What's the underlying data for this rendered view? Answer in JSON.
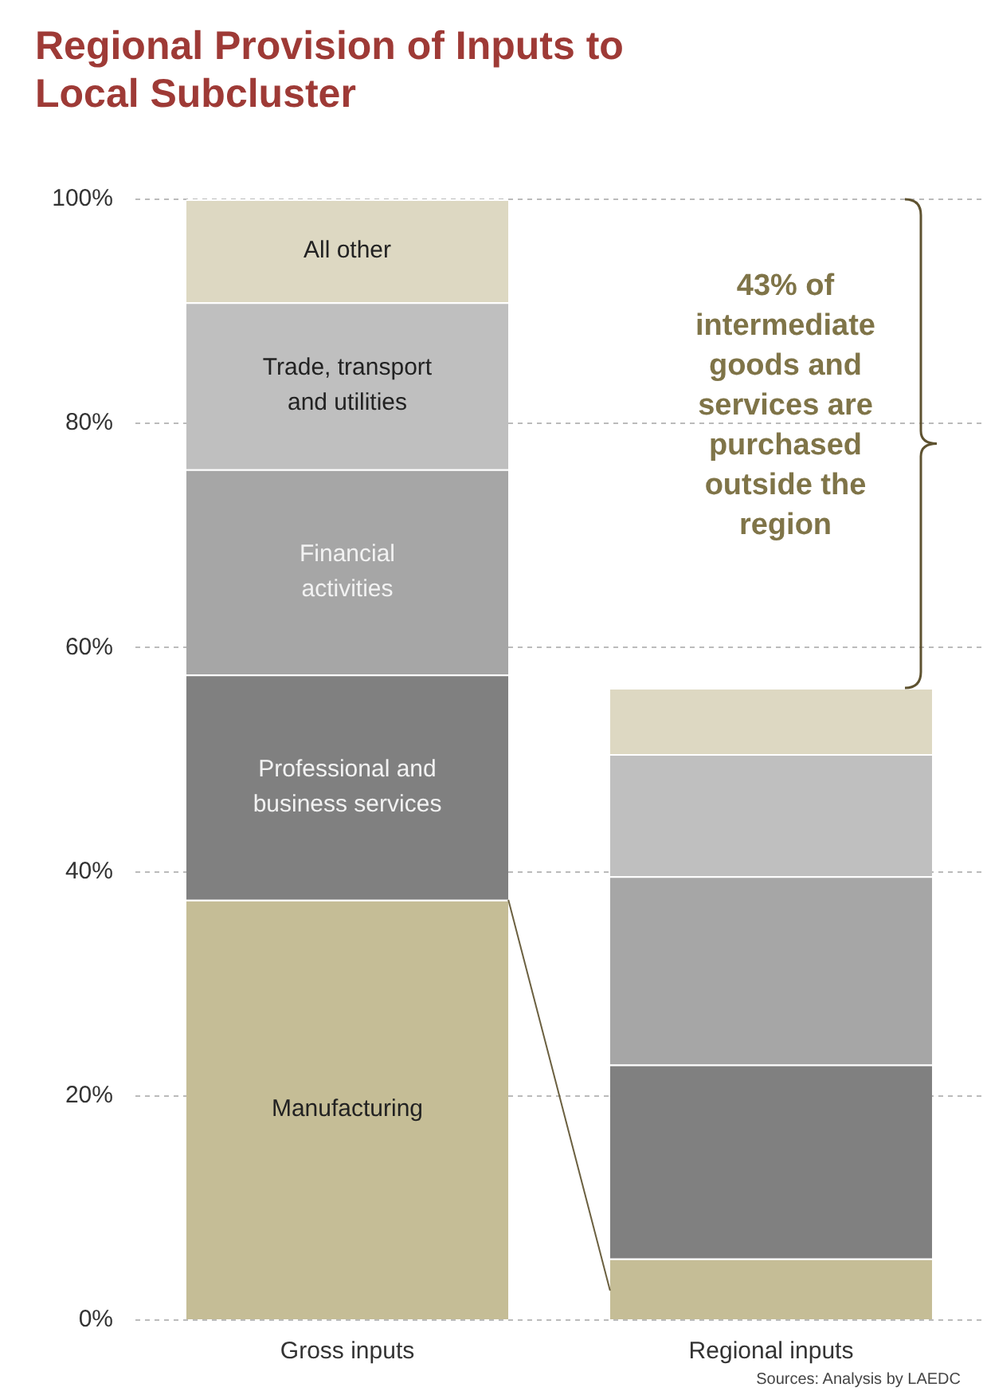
{
  "chart_data": {
    "type": "bar",
    "title": "Regional Provision of Inputs to Local Subcluster",
    "categories": [
      "Gross inputs",
      "Regional inputs"
    ],
    "stacked": true,
    "legend": false,
    "grid": "y",
    "ylim": [
      0,
      100
    ],
    "yticks": [
      {
        "value": 0,
        "label": "0%"
      },
      {
        "value": 20,
        "label": "20%"
      },
      {
        "value": 40,
        "label": "40%"
      },
      {
        "value": 60,
        "label": "60%"
      },
      {
        "value": 80,
        "label": "80%"
      },
      {
        "value": 100,
        "label": "100%"
      }
    ],
    "series": [
      {
        "name": "Manufacturing",
        "color": "#c5bd96",
        "values": [
          37.5,
          5.5
        ]
      },
      {
        "name": "Professional and business services",
        "color": "#808080",
        "values": [
          20.1,
          17.3
        ]
      },
      {
        "name": "Financial activities",
        "color": "#a6a6a6",
        "values": [
          18.3,
          16.8
        ]
      },
      {
        "name": "Trade, transport and utilities",
        "color": "#bfbfbf",
        "values": [
          14.9,
          10.9
        ]
      },
      {
        "name": "All other",
        "color": "#ddd8c2",
        "values": [
          9.2,
          5.9
        ]
      }
    ],
    "annotations": [
      "43% of intermediate goods and services are purchased outside the region",
      "Sources: Analysis by LAEDC"
    ]
  }
}
